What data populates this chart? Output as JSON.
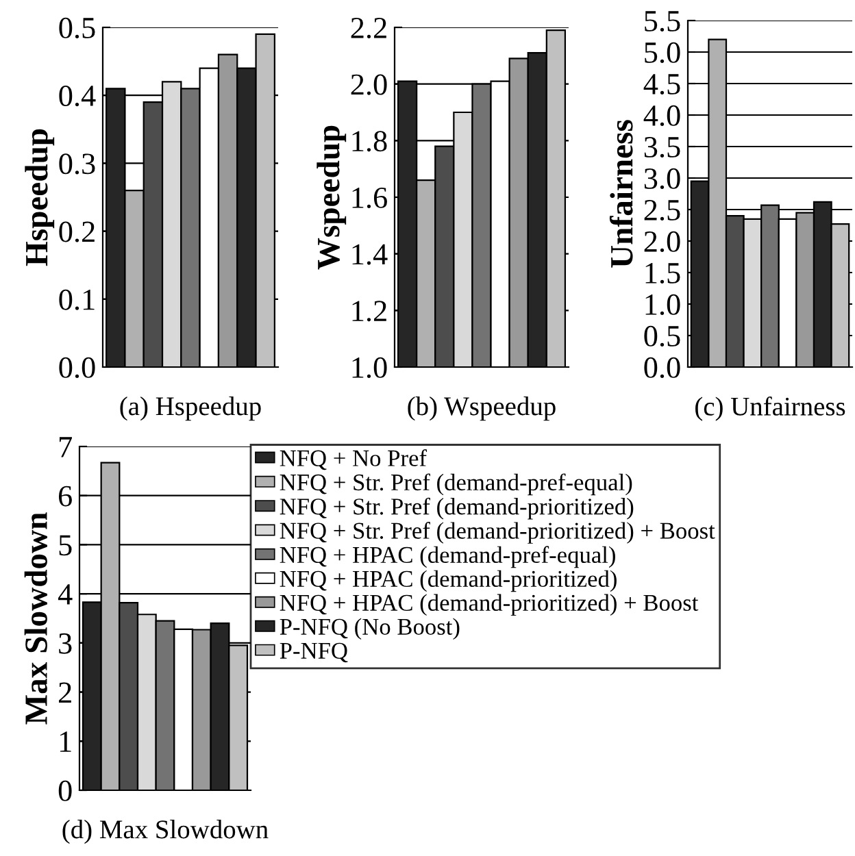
{
  "chart_data": [
    {
      "type": "bar",
      "xlabel": "(a) Hspeedup",
      "ylabel": "Hspeedup",
      "categories": [
        null
      ],
      "ylim": [
        0.0,
        0.5
      ],
      "yticks": [
        {
          "value": 0.0,
          "label": "0.0"
        },
        0.1,
        0.2,
        0.3,
        0.4,
        0.5
      ],
      "grid": "y",
      "legend": false,
      "series": [
        {
          "color": "#262626",
          "values": [
            0.41
          ]
        },
        {
          "color": "#b0b0b0",
          "values": [
            0.26
          ]
        },
        {
          "color": "#4d4d4d",
          "values": [
            0.39
          ]
        },
        {
          "color": "#d9d9d9",
          "values": [
            0.42
          ]
        },
        {
          "color": "#737373",
          "values": [
            0.41
          ]
        },
        {
          "color": "#ffffff",
          "values": [
            0.44
          ]
        },
        {
          "color": "#999999",
          "values": [
            0.46
          ]
        },
        {
          "color": "#262626",
          "values": [
            0.44
          ]
        },
        {
          "color": "#c0c0c0",
          "values": [
            0.49
          ]
        }
      ]
    },
    {
      "type": "bar",
      "xlabel": "(b) Wspeedup",
      "ylabel": "Wspeedup",
      "categories": [
        null
      ],
      "ylim": [
        1.0,
        2.2
      ],
      "yticks": [
        {
          "value": 1.0,
          "label": "1.0"
        },
        1.2,
        1.4,
        1.6,
        1.8,
        {
          "value": 2.0,
          "label": "2.0"
        },
        2.2
      ],
      "grid": "y",
      "legend": false,
      "series": [
        {
          "color": "#262626",
          "values": [
            2.01
          ]
        },
        {
          "color": "#b0b0b0",
          "values": [
            1.66
          ]
        },
        {
          "color": "#4d4d4d",
          "values": [
            1.78
          ]
        },
        {
          "color": "#d9d9d9",
          "values": [
            1.9
          ]
        },
        {
          "color": "#737373",
          "values": [
            2.0
          ]
        },
        {
          "color": "#ffffff",
          "values": [
            2.01
          ]
        },
        {
          "color": "#999999",
          "values": [
            2.09
          ]
        },
        {
          "color": "#262626",
          "values": [
            2.11
          ]
        },
        {
          "color": "#c0c0c0",
          "values": [
            2.19
          ]
        }
      ]
    },
    {
      "type": "bar",
      "xlabel": "(c) Unfairness",
      "ylabel": "Unfairness",
      "categories": [
        null
      ],
      "ylim": [
        0.0,
        5.5
      ],
      "yticks": [
        {
          "value": 0.0,
          "label": "0.0"
        },
        0.5,
        {
          "value": 1.0,
          "label": "1.0"
        },
        1.5,
        {
          "value": 2.0,
          "label": "2.0"
        },
        2.5,
        {
          "value": 3.0,
          "label": "3.0"
        },
        3.5,
        {
          "value": 4.0,
          "label": "4.0"
        },
        4.5,
        {
          "value": 5.0,
          "label": "5.0"
        },
        5.5
      ],
      "grid": "y",
      "legend": false,
      "series": [
        {
          "color": "#262626",
          "values": [
            2.95
          ]
        },
        {
          "color": "#b0b0b0",
          "values": [
            5.2
          ]
        },
        {
          "color": "#4d4d4d",
          "values": [
            2.4
          ]
        },
        {
          "color": "#d9d9d9",
          "values": [
            2.35
          ]
        },
        {
          "color": "#737373",
          "values": [
            2.57
          ]
        },
        {
          "color": "#ffffff",
          "values": [
            2.35
          ]
        },
        {
          "color": "#999999",
          "values": [
            2.45
          ]
        },
        {
          "color": "#262626",
          "values": [
            2.62
          ]
        },
        {
          "color": "#c0c0c0",
          "values": [
            2.27
          ]
        }
      ]
    },
    {
      "type": "bar",
      "xlabel": "(d) Max Slowdown",
      "ylabel": "Max Slowdown",
      "categories": [
        null
      ],
      "ylim": [
        0,
        7
      ],
      "yticks": [
        0,
        1,
        2,
        3,
        4,
        5,
        6,
        7
      ],
      "grid": "y",
      "legend": "right",
      "series": [
        {
          "name": "NFQ + No Pref",
          "color": "#262626",
          "values": [
            3.83
          ]
        },
        {
          "name": "NFQ + Str. Pref (demand-pref-equal)",
          "color": "#b0b0b0",
          "values": [
            6.67
          ]
        },
        {
          "name": "NFQ + Str. Pref (demand-prioritized)",
          "color": "#4d4d4d",
          "values": [
            3.82
          ]
        },
        {
          "name": "NFQ + Str. Pref (demand-prioritized) + Boost",
          "color": "#d9d9d9",
          "values": [
            3.58
          ]
        },
        {
          "name": "NFQ + HPAC (demand-pref-equal)",
          "color": "#737373",
          "values": [
            3.45
          ]
        },
        {
          "name": "NFQ + HPAC (demand-prioritized)",
          "color": "#ffffff",
          "values": [
            3.28
          ]
        },
        {
          "name": "NFQ + HPAC (demand-prioritized) + Boost",
          "color": "#999999",
          "values": [
            3.27
          ]
        },
        {
          "name": "P-NFQ (No Boost)",
          "color": "#262626",
          "values": [
            3.4
          ]
        },
        {
          "name": "P-NFQ",
          "color": "#c0c0c0",
          "values": [
            2.95
          ]
        }
      ]
    }
  ]
}
